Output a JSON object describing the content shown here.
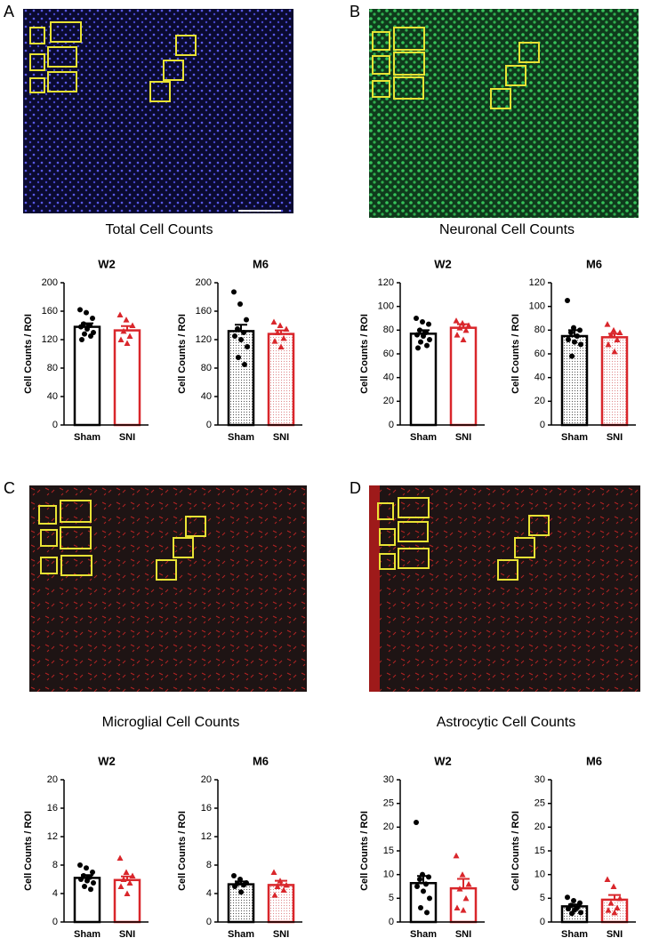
{
  "panels": [
    {
      "letter": "A",
      "title": "Total Cell Counts"
    },
    {
      "letter": "B",
      "title": "Neuronal Cell Counts"
    },
    {
      "letter": "C",
      "title": "Microglial Cell Counts"
    },
    {
      "letter": "D",
      "title": "Astrocytic Cell Counts"
    }
  ],
  "chart_data": [
    {
      "type": "bar",
      "title": "W2",
      "ylabel": "Cell Counts / ROI",
      "categories": [
        "Sham",
        "SNI"
      ],
      "colors": [
        "#000000",
        "#d9262b"
      ],
      "markers": [
        "circle",
        "triangle"
      ],
      "fill": "open",
      "values": [
        138,
        133
      ],
      "errors": [
        5,
        6
      ],
      "points": [
        [
          162,
          158,
          150,
          142,
          140,
          138,
          135,
          130,
          128,
          125,
          120
        ],
        [
          155,
          148,
          140,
          132,
          125,
          120,
          115
        ]
      ],
      "ylim": [
        0,
        200
      ],
      "yticks": [
        0,
        40,
        80,
        120,
        160,
        200
      ]
    },
    {
      "type": "bar",
      "title": "M6",
      "ylabel": "Cell Counts / ROI",
      "categories": [
        "Sham",
        "SNI"
      ],
      "colors": [
        "#000000",
        "#d9262b"
      ],
      "markers": [
        "circle",
        "triangle"
      ],
      "fill": "dotted",
      "values": [
        132,
        128
      ],
      "errors": [
        9,
        5
      ],
      "points": [
        [
          187,
          170,
          148,
          135,
          130,
          125,
          120,
          110,
          95,
          85
        ],
        [
          145,
          140,
          135,
          130,
          122,
          118,
          110
        ]
      ],
      "ylim": [
        0,
        200
      ],
      "yticks": [
        0,
        40,
        80,
        120,
        160,
        200
      ]
    },
    {
      "type": "bar",
      "title": "W2",
      "ylabel": "Cell Counts / ROI",
      "categories": [
        "Sham",
        "SNI"
      ],
      "colors": [
        "#000000",
        "#d9262b"
      ],
      "markers": [
        "circle",
        "triangle"
      ],
      "fill": "open",
      "values": [
        77,
        82
      ],
      "errors": [
        3,
        3
      ],
      "points": [
        [
          90,
          87,
          85,
          80,
          78,
          76,
          75,
          72,
          70,
          67,
          65
        ],
        [
          88,
          86,
          84,
          82,
          80,
          76,
          72
        ]
      ],
      "ylim": [
        0,
        120
      ],
      "yticks": [
        0,
        20,
        40,
        60,
        80,
        100,
        120
      ]
    },
    {
      "type": "bar",
      "title": "M6",
      "ylabel": "Cell Counts / ROI",
      "categories": [
        "Sham",
        "SNI"
      ],
      "colors": [
        "#000000",
        "#d9262b"
      ],
      "markers": [
        "circle",
        "triangle"
      ],
      "fill": "dotted",
      "values": [
        75,
        74
      ],
      "errors": [
        5,
        3
      ],
      "points": [
        [
          105,
          82,
          80,
          78,
          75,
          72,
          70,
          68,
          58
        ],
        [
          85,
          80,
          78,
          76,
          72,
          68,
          62
        ]
      ],
      "ylim": [
        0,
        120
      ],
      "yticks": [
        0,
        20,
        40,
        60,
        80,
        100,
        120
      ]
    },
    {
      "type": "bar",
      "title": "W2",
      "ylabel": "Cell Counts / ROI",
      "categories": [
        "Sham",
        "SNI"
      ],
      "colors": [
        "#000000",
        "#d9262b"
      ],
      "markers": [
        "circle",
        "triangle"
      ],
      "fill": "open",
      "values": [
        6.2,
        5.9
      ],
      "errors": [
        0.4,
        0.5
      ],
      "points": [
        [
          8,
          7.6,
          7,
          6.5,
          6.3,
          6,
          5.8,
          5.5,
          5,
          4.6
        ],
        [
          9,
          7,
          6.5,
          6,
          5.5,
          5,
          4
        ]
      ],
      "ylim": [
        0,
        20
      ],
      "yticks": [
        0,
        4,
        8,
        12,
        16,
        20
      ]
    },
    {
      "type": "bar",
      "title": "M6",
      "ylabel": "Cell Counts / ROI",
      "categories": [
        "Sham",
        "SNI"
      ],
      "colors": [
        "#000000",
        "#d9262b"
      ],
      "markers": [
        "circle",
        "triangle"
      ],
      "fill": "dotted",
      "values": [
        5.3,
        5.2
      ],
      "errors": [
        0.4,
        0.6
      ],
      "points": [
        [
          6.5,
          6,
          5.5,
          5.4,
          5.2,
          5,
          4.2
        ],
        [
          7,
          5.8,
          5.2,
          5,
          4.5,
          3.8
        ]
      ],
      "ylim": [
        0,
        20
      ],
      "yticks": [
        0,
        4,
        8,
        12,
        16,
        20
      ]
    },
    {
      "type": "bar",
      "title": "W2",
      "ylabel": "Cell Counts / ROI",
      "categories": [
        "Sham",
        "SNI"
      ],
      "colors": [
        "#000000",
        "#d9262b"
      ],
      "markers": [
        "circle",
        "triangle"
      ],
      "fill": "open",
      "values": [
        8.2,
        7.1
      ],
      "errors": [
        1.5,
        2
      ],
      "points": [
        [
          21,
          10,
          9.5,
          9,
          8,
          7.5,
          6.5,
          5,
          3,
          2
        ],
        [
          14,
          10,
          8,
          7,
          5,
          3,
          2.5
        ]
      ],
      "ylim": [
        0,
        30
      ],
      "yticks": [
        0,
        5,
        10,
        15,
        20,
        25,
        30
      ]
    },
    {
      "type": "bar",
      "title": "M6",
      "ylabel": "Cell Counts / ROI",
      "categories": [
        "Sham",
        "SNI"
      ],
      "colors": [
        "#000000",
        "#d9262b"
      ],
      "markers": [
        "circle",
        "triangle"
      ],
      "fill": "dotted",
      "values": [
        3.3,
        4.7
      ],
      "errors": [
        0.4,
        1
      ],
      "points": [
        [
          5.2,
          4.5,
          4,
          3.5,
          3,
          2.8,
          2.5,
          2,
          1.8
        ],
        [
          9,
          7.5,
          5,
          4,
          3,
          2.5,
          2
        ]
      ],
      "ylim": [
        0,
        30
      ],
      "yticks": [
        0,
        5,
        10,
        15,
        20,
        25,
        30
      ]
    }
  ]
}
